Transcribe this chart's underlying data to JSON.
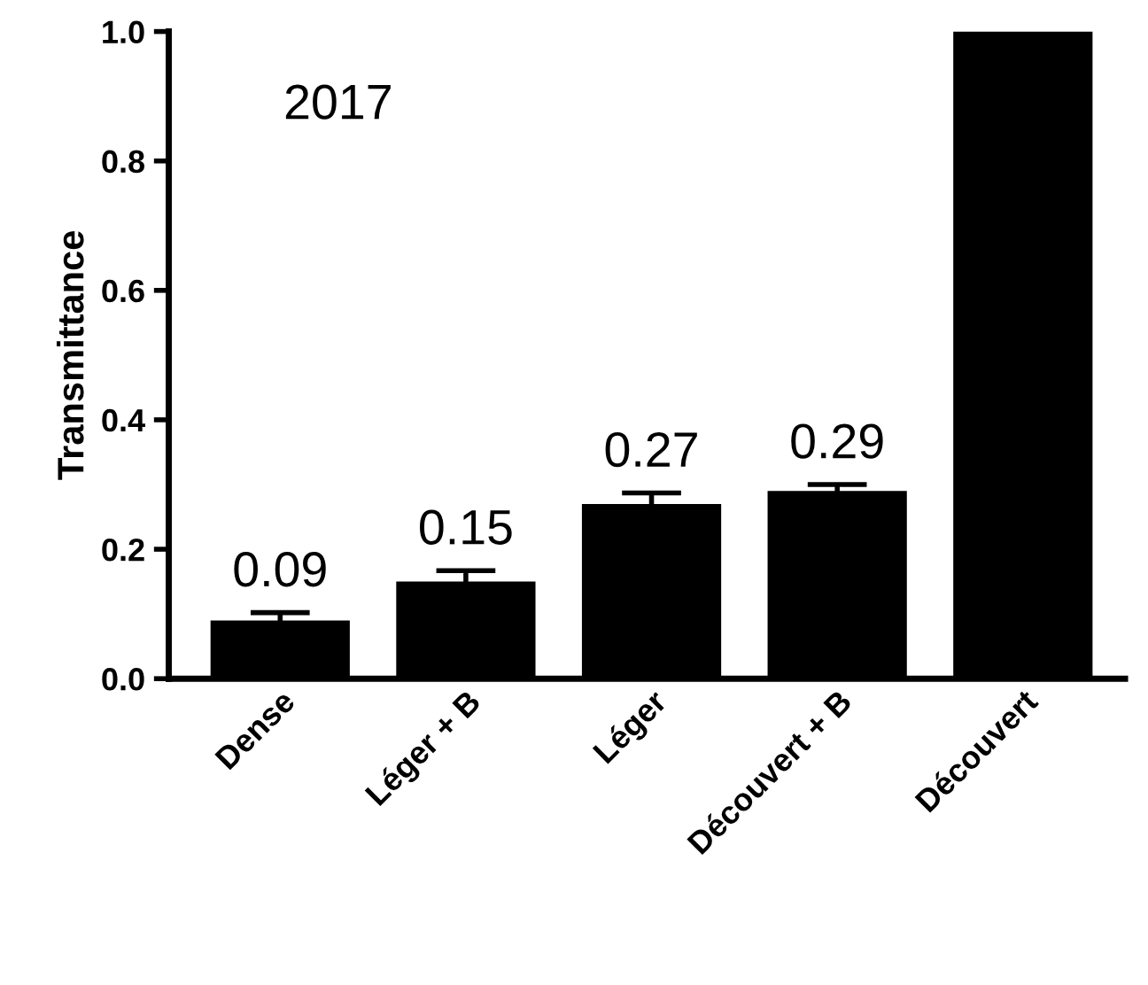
{
  "chart_data": {
    "type": "bar",
    "ylabel": "Transmittance",
    "annotations": [
      "2017"
    ],
    "categories": [
      "Dense",
      "Léger + B",
      "Léger",
      "Découvert + B",
      "Découvert"
    ],
    "values": [
      0.09,
      0.15,
      0.27,
      0.29,
      1.0
    ],
    "errors": [
      0.012,
      0.017,
      0.017,
      0.01,
      null
    ],
    "value_labels": [
      "0.09",
      "0.15",
      "0.27",
      "0.29",
      null
    ],
    "color": "#000000",
    "ylim": [
      0,
      1.0
    ],
    "yticks": [
      {
        "value": 0,
        "label": "0.0"
      },
      {
        "value": 0.2,
        "label": "0.2"
      },
      {
        "value": 0.4,
        "label": "0.4"
      },
      {
        "value": 0.6,
        "label": "0.6"
      },
      {
        "value": 0.8,
        "label": "0.8"
      },
      {
        "value": 1.0,
        "label": "1.0"
      }
    ],
    "grid": false,
    "legend": false
  }
}
